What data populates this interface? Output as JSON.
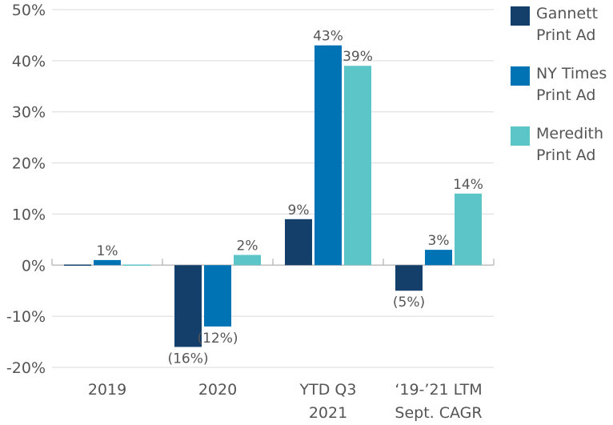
{
  "chart_data": {
    "type": "bar",
    "categories": [
      "2019",
      "2020",
      "YTD Q3\n2021",
      "‘19-’21 LTM\nSept. CAGR"
    ],
    "series": [
      {
        "name": "Gannett\nPrint Ad",
        "color": "#143f6b",
        "values": [
          0,
          -16,
          9,
          -5
        ],
        "labels": [
          "",
          "(16%)",
          "9%",
          "(5%)"
        ]
      },
      {
        "name": "NY Times\nPrint Ad",
        "color": "#0073b5",
        "values": [
          1,
          -12,
          43,
          3
        ],
        "labels": [
          "1%",
          "(12%)",
          "43%",
          "3%"
        ]
      },
      {
        "name": "Meredith\nPrint Ad",
        "color": "#5bc5c8",
        "values": [
          0,
          2,
          39,
          14
        ],
        "labels": [
          "",
          "2%",
          "39%",
          "14%"
        ]
      }
    ],
    "ylim": [
      -20,
      50
    ],
    "yticks": [
      "-20%",
      "-10%",
      "0%",
      "10%",
      "20%",
      "30%",
      "40%",
      "50%"
    ],
    "grid": true,
    "legend": "right"
  }
}
